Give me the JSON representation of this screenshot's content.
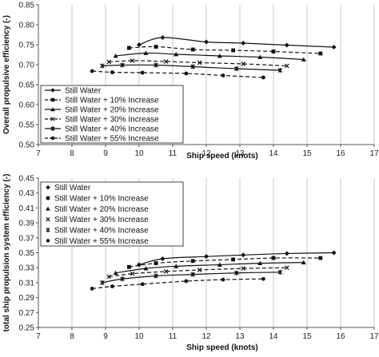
{
  "chart_data": [
    {
      "type": "line",
      "xlabel": "Ship speed (knots)",
      "ylabel": "Overall propulsive efficiency (-)",
      "xlim": [
        7,
        17
      ],
      "ylim": [
        0.5,
        0.85
      ],
      "xticks": [
        7,
        8,
        9,
        10,
        11,
        12,
        13,
        14,
        15,
        16,
        17
      ],
      "yticks": [
        0.5,
        0.55,
        0.6,
        0.65,
        0.7,
        0.75,
        0.8,
        0.85
      ],
      "yformat": 2,
      "grid": "vertical",
      "legend": "bottom-left",
      "series": [
        {
          "name": "Still Water",
          "marker": "diamond",
          "dash": "solid",
          "x": [
            10.0,
            10.7,
            12.0,
            13.1,
            14.4,
            15.8
          ],
          "y": [
            0.75,
            0.768,
            0.757,
            0.754,
            0.749,
            0.744
          ]
        },
        {
          "name": "Still Water + 10% Increase",
          "marker": "square",
          "dash": "dashed",
          "x": [
            9.7,
            10.5,
            11.6,
            12.8,
            14.0,
            15.4
          ],
          "y": [
            0.742,
            0.745,
            0.738,
            0.736,
            0.733,
            0.728
          ]
        },
        {
          "name": "Still Water + 20% Increase",
          "marker": "triangle",
          "dash": "solid",
          "x": [
            9.3,
            10.2,
            11.1,
            12.4,
            13.6,
            14.9
          ],
          "y": [
            0.722,
            0.729,
            0.726,
            0.722,
            0.719,
            0.713
          ]
        },
        {
          "name": "Still Water + 30% Increase",
          "marker": "x",
          "dash": "dashed",
          "x": [
            9.1,
            9.8,
            10.8,
            11.8,
            13.1,
            14.4
          ],
          "y": [
            0.707,
            0.71,
            0.708,
            0.705,
            0.702,
            0.697
          ]
        },
        {
          "name": "Still Water + 40% Increase",
          "marker": "star",
          "dash": "solid",
          "x": [
            8.9,
            9.5,
            10.5,
            11.6,
            12.9,
            14.2
          ],
          "y": [
            0.697,
            0.699,
            0.699,
            0.695,
            0.69,
            0.686
          ]
        },
        {
          "name": "Still Water + 55% Increase",
          "marker": "circle",
          "dash": "dashed",
          "x": [
            8.6,
            9.2,
            10.1,
            11.4,
            12.5,
            13.7
          ],
          "y": [
            0.684,
            0.681,
            0.68,
            0.678,
            0.673,
            0.668
          ]
        }
      ]
    },
    {
      "type": "scatter",
      "xlabel": "Ship speed (knots)",
      "ylabel": "total ship propulsion system efficiency (-)",
      "xlim": [
        7,
        17
      ],
      "ylim": [
        0.25,
        0.45
      ],
      "xticks": [
        7,
        8,
        9,
        10,
        11,
        12,
        13,
        14,
        15,
        16,
        17
      ],
      "yticks": [
        0.25,
        0.27,
        0.29,
        0.31,
        0.33,
        0.35,
        0.37,
        0.39,
        0.41,
        0.43,
        0.45
      ],
      "yformat": 2,
      "grid": "vertical",
      "legend": "top-left",
      "series": [
        {
          "name": "Still Water",
          "marker": "diamond",
          "dash": "solid",
          "x": [
            10.0,
            10.7,
            12.0,
            13.1,
            14.4,
            15.8
          ],
          "y": [
            0.334,
            0.342,
            0.345,
            0.347,
            0.349,
            0.35
          ]
        },
        {
          "name": "Still Water + 10% Increase",
          "marker": "square",
          "dash": "dashed",
          "x": [
            9.7,
            10.5,
            11.6,
            12.8,
            14.0,
            15.4
          ],
          "y": [
            0.331,
            0.336,
            0.339,
            0.341,
            0.343,
            0.343
          ]
        },
        {
          "name": "Still Water + 20% Increase",
          "marker": "triangle",
          "dash": "solid",
          "x": [
            9.3,
            10.2,
            11.1,
            12.4,
            13.6,
            14.9
          ],
          "y": [
            0.323,
            0.329,
            0.332,
            0.334,
            0.336,
            0.337
          ]
        },
        {
          "name": "Still Water + 30% Increase",
          "marker": "x",
          "dash": "dashed",
          "x": [
            9.1,
            9.8,
            10.8,
            11.8,
            13.1,
            14.4
          ],
          "y": [
            0.318,
            0.322,
            0.325,
            0.327,
            0.329,
            0.33
          ]
        },
        {
          "name": "Still Water + 40% Increase",
          "marker": "star",
          "dash": "solid",
          "x": [
            8.9,
            9.5,
            10.5,
            11.6,
            12.9,
            14.2
          ],
          "y": [
            0.31,
            0.315,
            0.319,
            0.321,
            0.323,
            0.324
          ]
        },
        {
          "name": "Still Water + 55% Increase",
          "marker": "circle",
          "dash": "dashed",
          "x": [
            8.6,
            9.2,
            10.1,
            11.4,
            12.5,
            13.7
          ],
          "y": [
            0.302,
            0.305,
            0.308,
            0.312,
            0.314,
            0.315
          ]
        }
      ]
    }
  ]
}
